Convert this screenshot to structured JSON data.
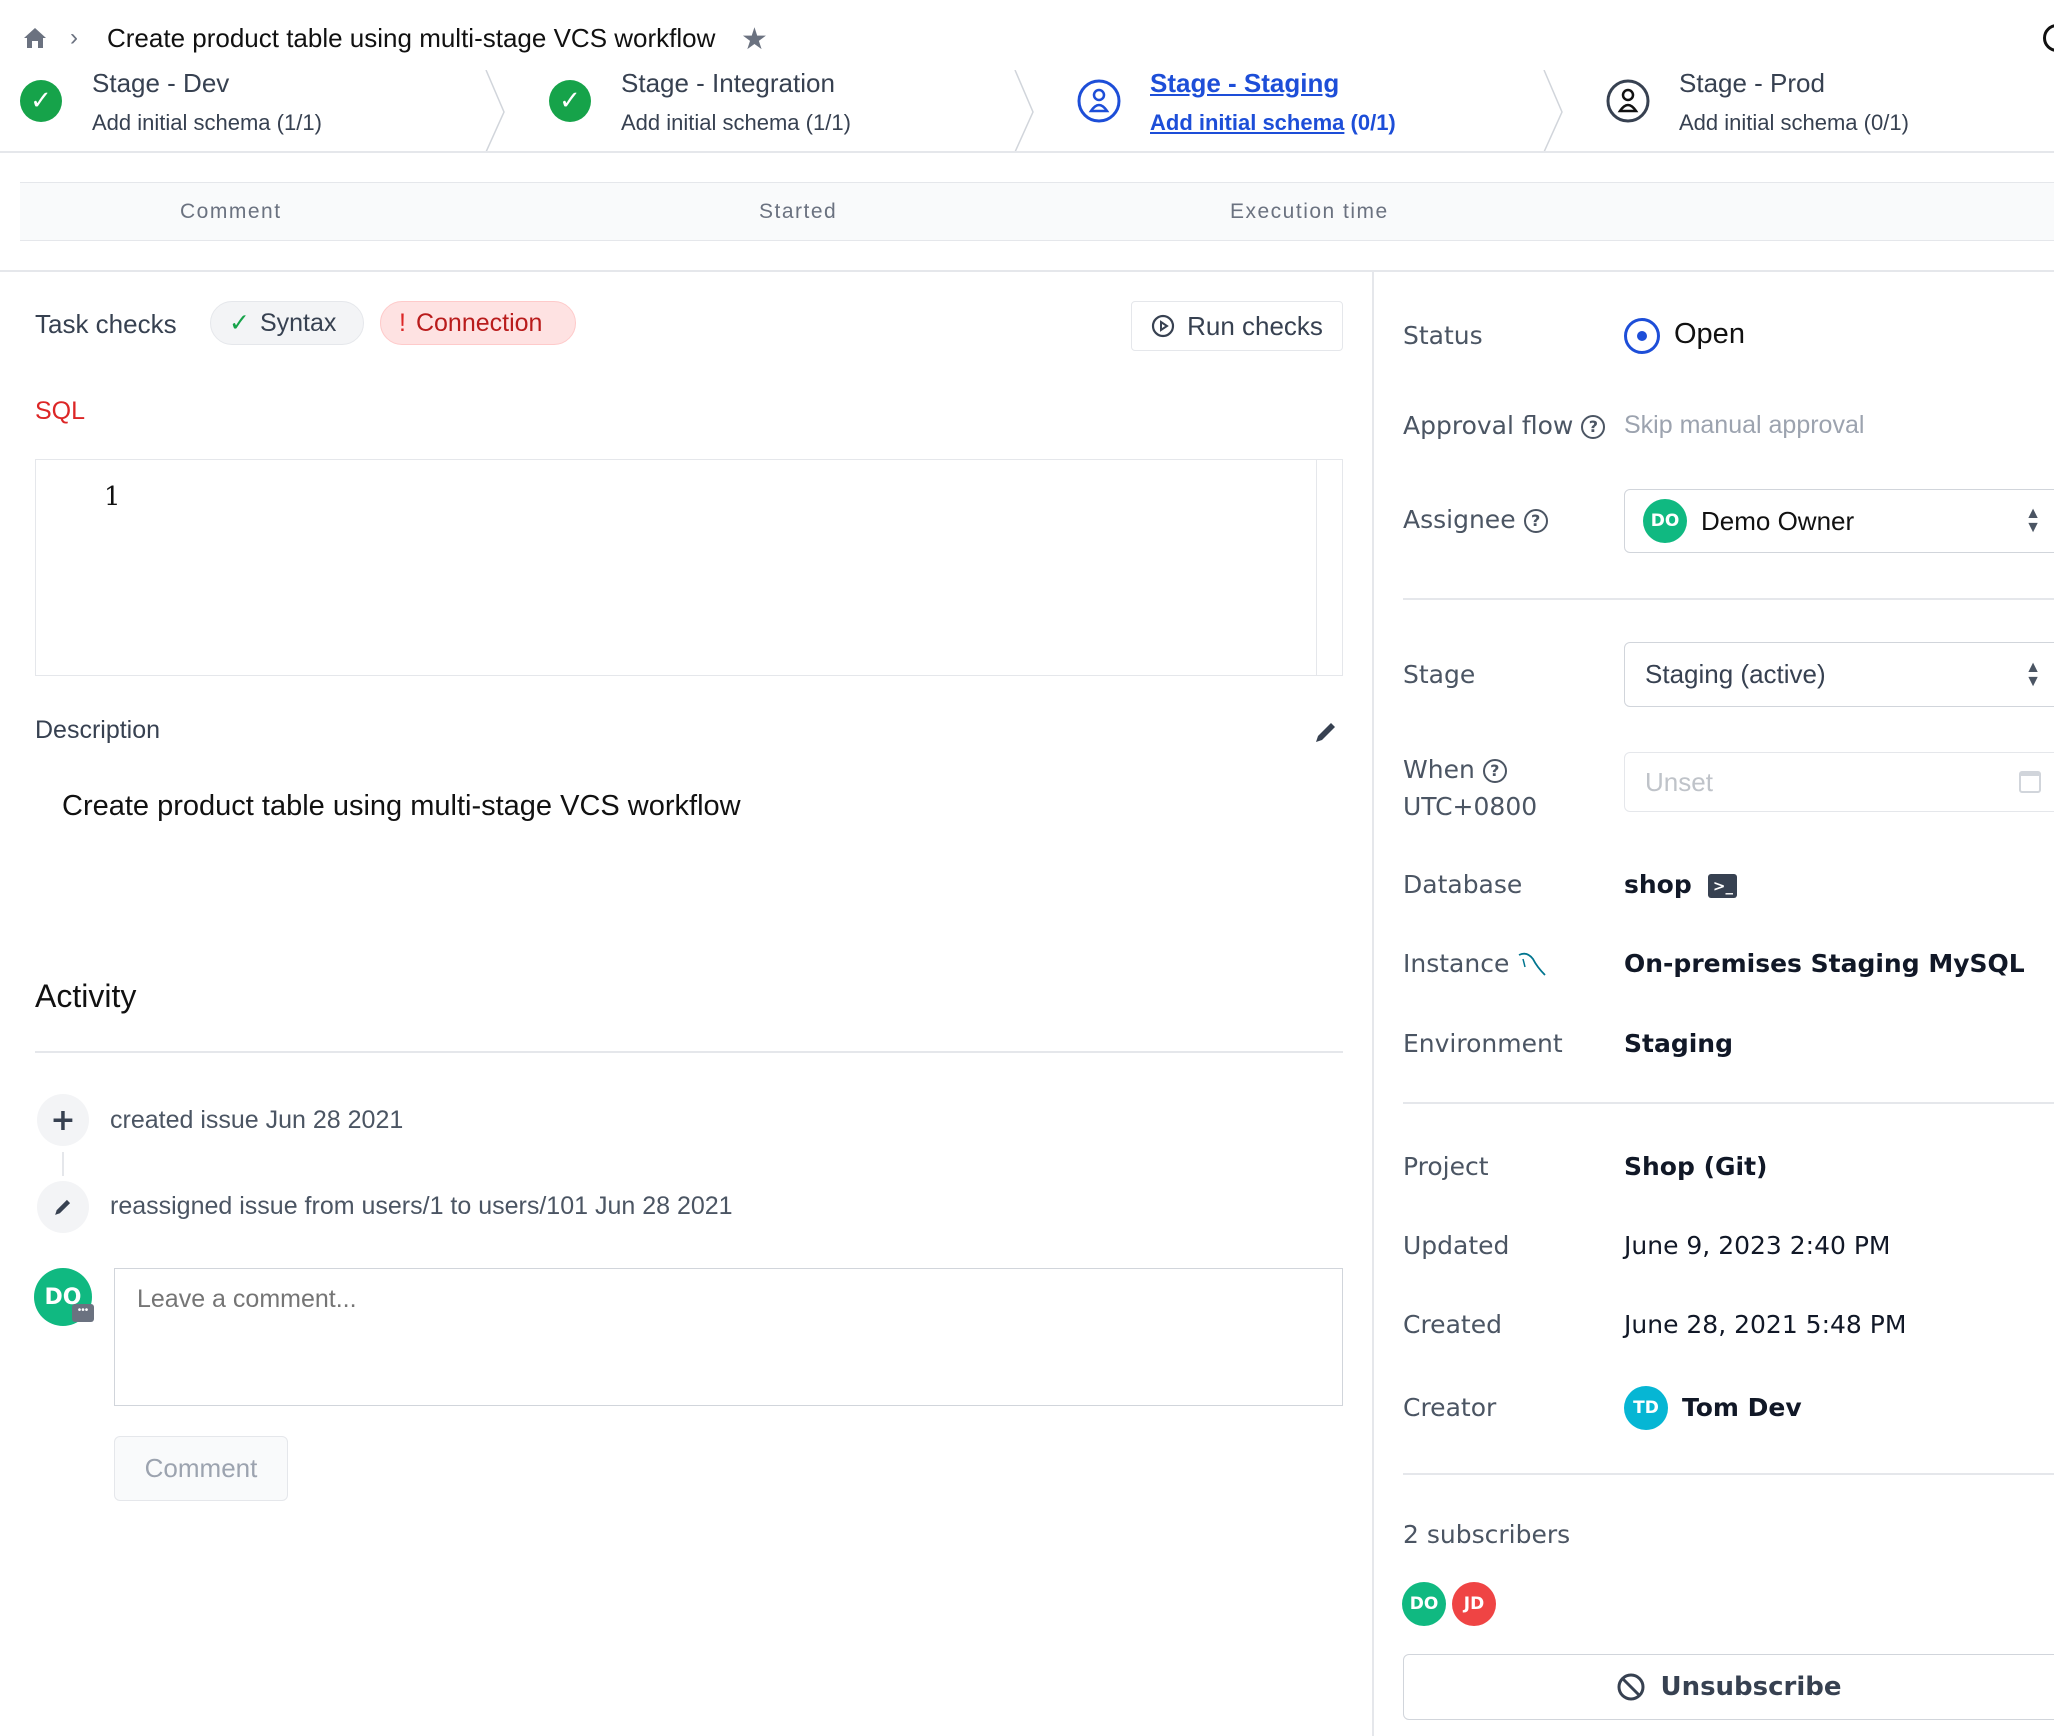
{
  "breadcrumb": {
    "title": "Create product table using multi-stage VCS workflow"
  },
  "stages": [
    {
      "title": "Stage - Dev",
      "task": "Add initial schema",
      "count": "(1/1)",
      "state": "done"
    },
    {
      "title": "Stage - Integration",
      "task": "Add initial schema",
      "count": "(1/1)",
      "state": "done"
    },
    {
      "title": "Stage - Staging",
      "task": "Add initial schema",
      "count": "(0/1)",
      "state": "active"
    },
    {
      "title": "Stage - Prod",
      "task": "Add initial schema",
      "count": "(0/1)",
      "state": "pending"
    }
  ],
  "task_table": {
    "columns": [
      "Comment",
      "Started",
      "Execution time"
    ]
  },
  "task_checks": {
    "label": "Task checks",
    "syntax": "Syntax",
    "connection": "Connection",
    "run_checks": "Run checks"
  },
  "sql": {
    "label": "SQL",
    "line_number": "1"
  },
  "description": {
    "label": "Description",
    "text": "Create product table using multi-stage VCS workflow"
  },
  "activity": {
    "title": "Activity",
    "items": [
      {
        "icon": "plus-icon",
        "text": "created issue Jun 28 2021"
      },
      {
        "icon": "pencil-icon",
        "text": "reassigned issue from users/1 to users/101 Jun 28 2021"
      }
    ],
    "comment_avatar": "DO",
    "comment_placeholder": "Leave a comment...",
    "comment_button": "Comment"
  },
  "sidebar": {
    "status_label": "Status",
    "status_value": "Open",
    "approval_label": "Approval flow",
    "approval_value": "Skip manual approval",
    "assignee_label": "Assignee",
    "assignee_initials": "DO",
    "assignee_name": "Demo Owner",
    "stage_label": "Stage",
    "stage_value": "Staging (active)",
    "when_label": "When",
    "when_tz": "UTC+0800",
    "when_placeholder": "Unset",
    "database_label": "Database",
    "database_value": "shop",
    "instance_label": "Instance",
    "instance_value": "On-premises Staging MySQL",
    "environment_label": "Environment",
    "environment_value": "Staging",
    "project_label": "Project",
    "project_value": "Shop (Git)",
    "updated_label": "Updated",
    "updated_value": "June 9, 2023 2:40 PM",
    "created_label": "Created",
    "created_value": "June 28, 2021 5:48 PM",
    "creator_label": "Creator",
    "creator_initials": "TD",
    "creator_name": "Tom Dev",
    "subscribers_label": "2 subscribers",
    "subscribers": [
      "DO",
      "JD"
    ],
    "unsubscribe": "Unsubscribe"
  },
  "colors": {
    "success": "#16a34a",
    "accent": "#1d4ed8",
    "error": "#dc2626",
    "avatar_do": "#10b981",
    "avatar_jd": "#ef4444",
    "avatar_td": "#06b6d4"
  }
}
